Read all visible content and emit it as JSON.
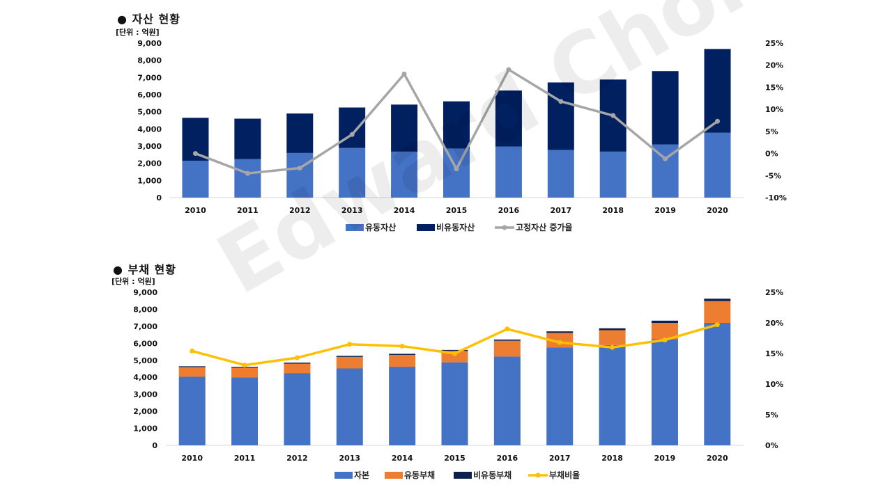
{
  "charts": {
    "assets": {
      "title": "● 자산 현황",
      "unit": "[단위 : 억원]"
    },
    "debt": {
      "title": "● 부채 현황",
      "unit": "[단위 : 억원]"
    }
  },
  "watermark": "Edward Choi",
  "colors": {
    "current_asset": "#4472C4",
    "noncurrent_asset": "#002060",
    "fixed_growth": "#A6A6A6",
    "equity": "#4472C4",
    "current_debt": "#ED7D31",
    "noncurrent_debt": "#0D1F4D",
    "debt_ratio": "#FFC000"
  },
  "chart_data": [
    {
      "type": "bar",
      "stacked": true,
      "categories": [
        "2010",
        "2011",
        "2012",
        "2013",
        "2014",
        "2015",
        "2016",
        "2017",
        "2018",
        "2019",
        "2020"
      ],
      "series": [
        {
          "name": "유동자산",
          "values": [
            2150,
            2250,
            2600,
            2900,
            2680,
            2860,
            2970,
            2780,
            2680,
            3100,
            3780
          ]
        },
        {
          "name": "비유동자산",
          "values": [
            2500,
            2350,
            2300,
            2350,
            2740,
            2750,
            3270,
            3930,
            4200,
            4270,
            4880
          ]
        }
      ],
      "line_series": [
        {
          "name": "고정자산 증가율",
          "axis": "right",
          "values": [
            0.0,
            -4.5,
            -3.3,
            4.3,
            18.0,
            -3.5,
            19.0,
            11.8,
            8.6,
            -1.2,
            7.3
          ]
        }
      ],
      "yticks": [
        "9,000",
        "8,000",
        "7,000",
        "6,000",
        "5,000",
        "4,000",
        "3,000",
        "2,000",
        "1,000",
        "0"
      ],
      "y2ticks": [
        "25%",
        "20%",
        "15%",
        "10%",
        "5%",
        "0%",
        "-5%",
        "-10%"
      ],
      "ylim": [
        0,
        9000
      ],
      "y2lim": [
        -10,
        25
      ],
      "legend": "bottom"
    },
    {
      "type": "bar",
      "stacked": true,
      "categories": [
        "2010",
        "2011",
        "2012",
        "2013",
        "2014",
        "2015",
        "2016",
        "2017",
        "2018",
        "2019",
        "2020"
      ],
      "series": [
        {
          "name": "자본",
          "values": [
            4030,
            4000,
            4250,
            4520,
            4620,
            4880,
            5220,
            5750,
            5900,
            6250,
            7200
          ]
        },
        {
          "name": "유동부채",
          "values": [
            570,
            560,
            550,
            680,
            700,
            670,
            930,
            860,
            870,
            950,
            1280
          ]
        },
        {
          "name": "비유동부채",
          "values": [
            50,
            50,
            60,
            60,
            60,
            60,
            70,
            90,
            110,
            130,
            140
          ]
        }
      ],
      "line_series": [
        {
          "name": "부채비율",
          "axis": "right",
          "values": [
            15.4,
            13.1,
            14.3,
            16.5,
            16.2,
            15.0,
            19.0,
            16.8,
            16.0,
            17.2,
            19.7
          ]
        }
      ],
      "yticks": [
        "9,000",
        "8,000",
        "7,000",
        "6,000",
        "5,000",
        "4,000",
        "3,000",
        "2,000",
        "1,000",
        "0"
      ],
      "y2ticks": [
        "25%",
        "20%",
        "15%",
        "10%",
        "5%",
        "0%"
      ],
      "ylim": [
        0,
        9000
      ],
      "y2lim": [
        0,
        25
      ],
      "legend": "bottom"
    }
  ]
}
